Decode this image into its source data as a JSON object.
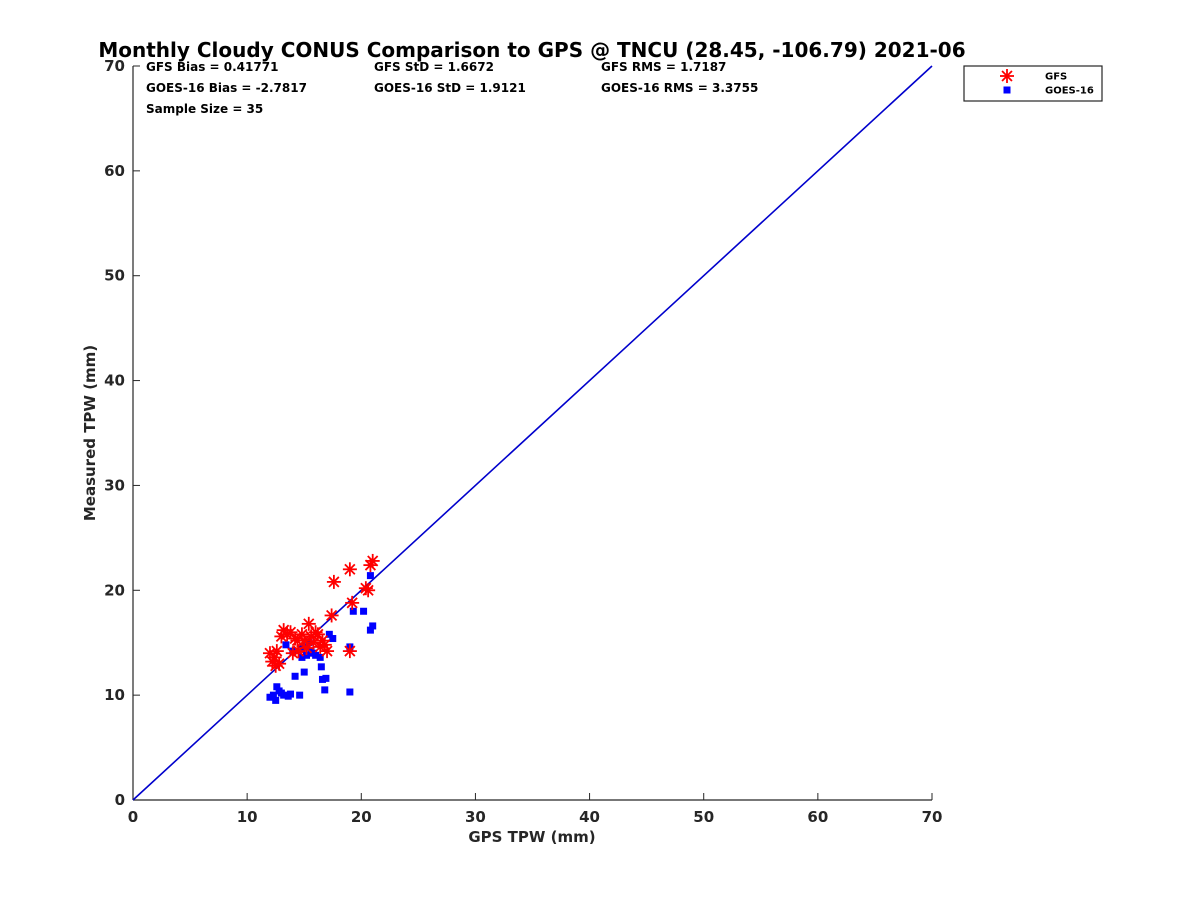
{
  "chart_data": {
    "type": "scatter",
    "title": "Monthly Cloudy CONUS Comparison to GPS @ TNCU (28.45, -106.79) 2021-06",
    "xlabel": "GPS TPW (mm)",
    "ylabel": "Measured TPW (mm)",
    "xlim": [
      0,
      70
    ],
    "ylim": [
      0,
      70
    ],
    "xticks": [
      "0",
      "10",
      "20",
      "30",
      "40",
      "50",
      "60",
      "70"
    ],
    "yticks": [
      "0",
      "10",
      "20",
      "30",
      "40",
      "50",
      "60",
      "70"
    ],
    "grid": false,
    "legend_position": "outside-top-right",
    "stats": {
      "gfs_bias": "GFS Bias = 0.41771",
      "gfs_std": "GFS StD = 1.6672",
      "gfs_rms": "GFS RMS = 1.7187",
      "goes_bias": "GOES-16 Bias = -2.7817",
      "goes_std": "GOES-16 StD = 1.9121",
      "goes_rms": "GOES-16 RMS = 3.3755",
      "sample_size": "Sample Size = 35"
    },
    "reference_line": {
      "name": "1:1 line",
      "x": [
        0,
        70
      ],
      "y": [
        0,
        70
      ],
      "color": "#0000cc"
    },
    "series": [
      {
        "name": "GFS",
        "marker": "asterisk",
        "color": "#ff0000",
        "points": [
          [
            12.0,
            14.0
          ],
          [
            12.2,
            13.2
          ],
          [
            12.4,
            13.6
          ],
          [
            12.5,
            12.8
          ],
          [
            12.6,
            14.2
          ],
          [
            13.0,
            15.6
          ],
          [
            13.2,
            16.2
          ],
          [
            13.5,
            15.8
          ],
          [
            13.8,
            16.0
          ],
          [
            14.0,
            14.0
          ],
          [
            14.2,
            15.4
          ],
          [
            14.5,
            14.2
          ],
          [
            14.8,
            15.8
          ],
          [
            15.0,
            15.2
          ],
          [
            15.2,
            14.5
          ],
          [
            15.4,
            16.8
          ],
          [
            15.6,
            15.6
          ],
          [
            16.2,
            15.8
          ],
          [
            16.4,
            14.6
          ],
          [
            16.6,
            15.2
          ],
          [
            16.8,
            14.8
          ],
          [
            17.0,
            14.2
          ],
          [
            17.4,
            17.6
          ],
          [
            17.6,
            20.8
          ],
          [
            19.0,
            22.0
          ],
          [
            19.0,
            14.2
          ],
          [
            19.2,
            18.8
          ],
          [
            20.4,
            20.2
          ],
          [
            20.6,
            20.0
          ],
          [
            20.8,
            22.4
          ],
          [
            21.0,
            22.8
          ],
          [
            12.8,
            13.0
          ],
          [
            15.8,
            15.0
          ],
          [
            14.4,
            15.2
          ],
          [
            16.0,
            16.0
          ]
        ]
      },
      {
        "name": "GOES-16",
        "marker": "square",
        "color": "#0000ff",
        "points": [
          [
            12.0,
            9.8
          ],
          [
            12.3,
            10.0
          ],
          [
            12.5,
            9.5
          ],
          [
            12.6,
            10.8
          ],
          [
            12.8,
            10.4
          ],
          [
            13.0,
            10.2
          ],
          [
            13.4,
            14.8
          ],
          [
            13.6,
            9.9
          ],
          [
            13.8,
            10.1
          ],
          [
            14.2,
            11.8
          ],
          [
            14.6,
            10.0
          ],
          [
            14.8,
            13.6
          ],
          [
            15.0,
            12.2
          ],
          [
            15.0,
            14.6
          ],
          [
            15.2,
            13.8
          ],
          [
            15.4,
            15.0
          ],
          [
            15.6,
            14.2
          ],
          [
            16.0,
            13.8
          ],
          [
            16.4,
            13.6
          ],
          [
            16.5,
            12.7
          ],
          [
            16.6,
            11.5
          ],
          [
            16.8,
            10.5
          ],
          [
            16.9,
            11.6
          ],
          [
            17.2,
            15.8
          ],
          [
            17.5,
            15.4
          ],
          [
            19.0,
            14.6
          ],
          [
            19.0,
            10.3
          ],
          [
            19.3,
            18.0
          ],
          [
            20.2,
            18.0
          ],
          [
            20.8,
            16.2
          ],
          [
            20.8,
            21.4
          ],
          [
            21.0,
            16.6
          ],
          [
            15.8,
            14.0
          ],
          [
            14.0,
            14.2
          ],
          [
            13.2,
            10.0
          ]
        ]
      }
    ]
  }
}
